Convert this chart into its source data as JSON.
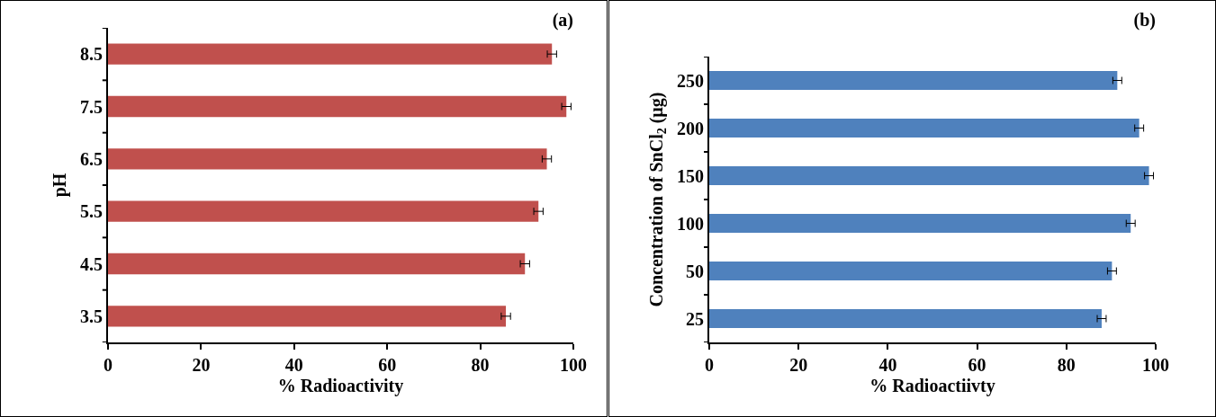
{
  "chart_data": [
    {
      "type": "bar",
      "orientation": "horizontal",
      "title": "(a)",
      "xlabel": "% Radioactivity",
      "ylabel": "pH",
      "categories": [
        "8.5",
        "7.5",
        "6.5",
        "5.5",
        "4.5",
        "3.5"
      ],
      "values": [
        95.4,
        98.5,
        94.3,
        92.5,
        89.6,
        85.5
      ],
      "errors": [
        1,
        1,
        1,
        1,
        1,
        1
      ],
      "color": "#c0504d",
      "xlim": [
        0,
        100
      ],
      "xticks": [
        0,
        20,
        40,
        60,
        80,
        100
      ],
      "grid": false
    },
    {
      "type": "bar",
      "orientation": "horizontal",
      "title": "(b)",
      "xlabel": "% Radioactiivty",
      "ylabel": "Concentration of SnCl$_{2}$ (µg)",
      "categories": [
        "250",
        "200",
        "150",
        "100",
        "50",
        "25"
      ],
      "values": [
        91.4,
        96.3,
        98.5,
        94.4,
        90.2,
        87.9
      ],
      "errors": [
        1,
        1,
        1,
        1,
        1,
        1
      ],
      "color": "#4f81bd",
      "xlim": [
        0,
        100
      ],
      "xticks": [
        0,
        20,
        40,
        60,
        80,
        100
      ],
      "grid": false
    }
  ]
}
